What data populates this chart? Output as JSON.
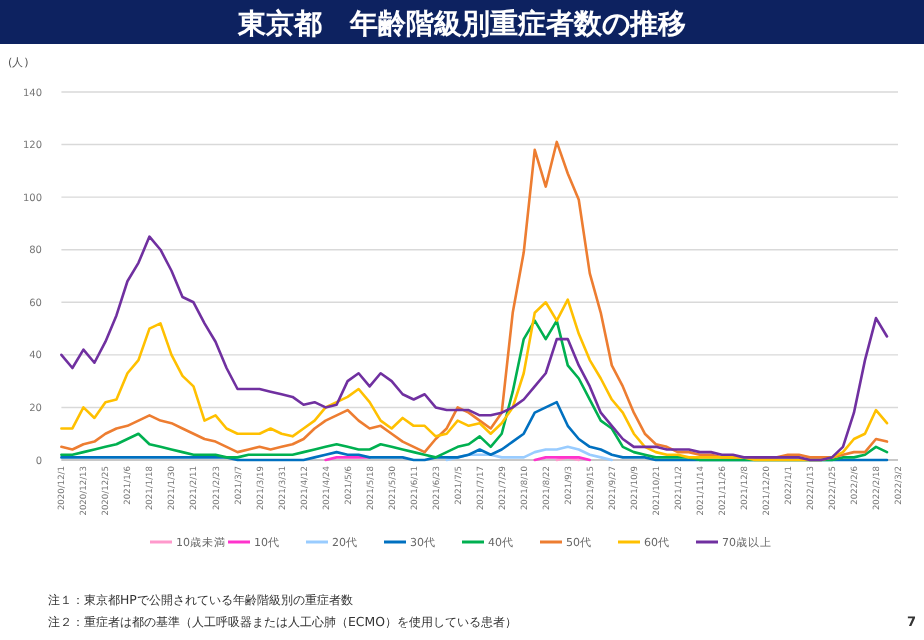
{
  "chart_data": {
    "type": "line",
    "title": "東京都　年齢階級別重症者数の推移",
    "ylabel": "(人)",
    "x": [
      "2020-12-01",
      "2020-12-07",
      "2020-12-13",
      "2020-12-19",
      "2020-12-25",
      "2020-12-31",
      "2021-01-06",
      "2021-01-12",
      "2021-01-18",
      "2021-01-24",
      "2021-01-30",
      "2021-02-05",
      "2021-02-11",
      "2021-02-17",
      "2021-02-23",
      "2021-03-01",
      "2021-03-07",
      "2021-03-13",
      "2021-03-19",
      "2021-03-25",
      "2021-03-31",
      "2021-04-06",
      "2021-04-12",
      "2021-04-18",
      "2021-04-24",
      "2021-04-30",
      "2021-05-06",
      "2021-05-12",
      "2021-05-18",
      "2021-05-24",
      "2021-05-30",
      "2021-06-05",
      "2021-06-11",
      "2021-06-17",
      "2021-06-23",
      "2021-06-29",
      "2021-07-05",
      "2021-07-11",
      "2021-07-17",
      "2021-07-23",
      "2021-07-29",
      "2021-08-04",
      "2021-08-10",
      "2021-08-16",
      "2021-08-22",
      "2021-08-28",
      "2021-09-03",
      "2021-09-09",
      "2021-09-15",
      "2021-09-21",
      "2021-09-27",
      "2021-10-03",
      "2021-10-09",
      "2021-10-15",
      "2021-10-21",
      "2021-10-27",
      "2021-11-02",
      "2021-11-08",
      "2021-11-14",
      "2021-11-20",
      "2021-11-26",
      "2021-12-02",
      "2021-12-08",
      "2021-12-14",
      "2021-12-20",
      "2021-12-26",
      "2022-01-01",
      "2022-01-07",
      "2022-01-13",
      "2022-01-19",
      "2022-01-25",
      "2022-01-31",
      "2022-02-06",
      "2022-02-12",
      "2022-02-18",
      "2022-02-24"
    ],
    "xlim": [
      "2020-12-01",
      "2022-03-02"
    ],
    "xticks": [
      {
        "value": "2020-12-01",
        "label": "2020/12/1"
      },
      {
        "value": "2020-12-13",
        "label": "2020/12/13"
      },
      {
        "value": "2020-12-25",
        "label": "2020/12/25"
      },
      {
        "value": "2021-01-06",
        "label": "2021/1/6"
      },
      {
        "value": "2021-01-18",
        "label": "2021/1/18"
      },
      {
        "value": "2021-01-30",
        "label": "2021/1/30"
      },
      {
        "value": "2021-02-11",
        "label": "2021/2/11"
      },
      {
        "value": "2021-02-23",
        "label": "2021/2/23"
      },
      {
        "value": "2021-03-07",
        "label": "2021/3/7"
      },
      {
        "value": "2021-03-19",
        "label": "2021/3/19"
      },
      {
        "value": "2021-03-31",
        "label": "2021/3/31"
      },
      {
        "value": "2021-04-12",
        "label": "2021/4/12"
      },
      {
        "value": "2021-04-24",
        "label": "2021/4/24"
      },
      {
        "value": "2021-05-06",
        "label": "2021/5/6"
      },
      {
        "value": "2021-05-18",
        "label": "2021/5/18"
      },
      {
        "value": "2021-05-30",
        "label": "2021/5/30"
      },
      {
        "value": "2021-06-11",
        "label": "2021/6/11"
      },
      {
        "value": "2021-06-23",
        "label": "2021/6/23"
      },
      {
        "value": "2021-07-05",
        "label": "2021/7/5"
      },
      {
        "value": "2021-07-17",
        "label": "2021/7/17"
      },
      {
        "value": "2021-07-29",
        "label": "2021/7/29"
      },
      {
        "value": "2021-08-10",
        "label": "2021/8/10"
      },
      {
        "value": "2021-08-22",
        "label": "2021/8/22"
      },
      {
        "value": "2021-09-03",
        "label": "2021/9/3"
      },
      {
        "value": "2021-09-15",
        "label": "2021/9/15"
      },
      {
        "value": "2021-09-27",
        "label": "2021/9/27"
      },
      {
        "value": "2021-10-09",
        "label": "2021/10/9"
      },
      {
        "value": "2021-10-21",
        "label": "2021/10/21"
      },
      {
        "value": "2021-11-02",
        "label": "2021/11/2"
      },
      {
        "value": "2021-11-14",
        "label": "2021/11/14"
      },
      {
        "value": "2021-11-26",
        "label": "2021/11/26"
      },
      {
        "value": "2021-12-08",
        "label": "2021/12/8"
      },
      {
        "value": "2021-12-20",
        "label": "2021/12/20"
      },
      {
        "value": "2022-01-01",
        "label": "2022/1/1"
      },
      {
        "value": "2022-01-13",
        "label": "2022/1/13"
      },
      {
        "value": "2022-01-25",
        "label": "2022/1/25"
      },
      {
        "value": "2022-02-06",
        "label": "2022/2/6"
      },
      {
        "value": "2022-02-18",
        "label": "2022/2/18"
      },
      {
        "value": "2022-03-02",
        "label": "2022/3/2"
      }
    ],
    "ylim": [
      0,
      140
    ],
    "yticks": [
      0,
      20,
      40,
      60,
      80,
      100,
      120,
      140
    ],
    "grid": "y",
    "legend": "bottom",
    "series": [
      {
        "name": "10歳未満",
        "color": "#ff99cc",
        "values": [
          null,
          null,
          null,
          null,
          null,
          null,
          null,
          null,
          null,
          null,
          null,
          null,
          null,
          null,
          null,
          null,
          null,
          null,
          null,
          null,
          null,
          null,
          null,
          null,
          null,
          null,
          null,
          null,
          null,
          null,
          null,
          null,
          null,
          null,
          null,
          null,
          null,
          null,
          null,
          null,
          null,
          null,
          null,
          null,
          null,
          0,
          1,
          0,
          null,
          null,
          null,
          null,
          null,
          null,
          null,
          null,
          null,
          null,
          null,
          null,
          null,
          null,
          null,
          null,
          null,
          null,
          null,
          null,
          null,
          null,
          null,
          null,
          null,
          null,
          null,
          null
        ]
      },
      {
        "name": "10代",
        "color": "#ff33cc",
        "values": [
          null,
          null,
          null,
          null,
          null,
          null,
          null,
          null,
          null,
          null,
          null,
          null,
          null,
          null,
          null,
          null,
          null,
          null,
          null,
          null,
          null,
          null,
          null,
          null,
          0,
          1,
          1,
          1,
          1,
          null,
          null,
          null,
          null,
          null,
          null,
          null,
          null,
          null,
          null,
          null,
          null,
          null,
          null,
          0,
          1,
          1,
          1,
          1,
          0,
          null,
          null,
          null,
          null,
          null,
          null,
          null,
          null,
          null,
          null,
          null,
          null,
          null,
          null,
          null,
          null,
          null,
          null,
          null,
          null,
          null,
          null,
          null,
          null,
          null,
          null,
          null
        ]
      },
      {
        "name": "20代",
        "color": "#99ccff",
        "values": [
          null,
          null,
          null,
          null,
          null,
          null,
          null,
          null,
          null,
          null,
          null,
          null,
          null,
          null,
          null,
          null,
          null,
          null,
          null,
          null,
          null,
          null,
          null,
          null,
          null,
          null,
          null,
          null,
          null,
          null,
          null,
          null,
          null,
          null,
          null,
          0,
          1,
          2,
          2,
          2,
          1,
          1,
          1,
          3,
          4,
          4,
          5,
          4,
          2,
          1,
          0,
          null,
          null,
          null,
          null,
          null,
          null,
          null,
          null,
          null,
          null,
          null,
          null,
          null,
          null,
          null,
          null,
          null,
          null,
          null,
          null,
          null,
          null,
          null,
          null,
          null
        ]
      },
      {
        "name": "30代",
        "color": "#0070c0",
        "values": [
          1,
          1,
          1,
          1,
          1,
          1,
          1,
          1,
          1,
          1,
          1,
          1,
          1,
          1,
          1,
          1,
          0,
          0,
          0,
          0,
          0,
          0,
          0,
          1,
          2,
          3,
          2,
          2,
          1,
          1,
          1,
          1,
          0,
          0,
          1,
          1,
          1,
          2,
          4,
          2,
          4,
          7,
          10,
          18,
          20,
          22,
          13,
          8,
          5,
          4,
          2,
          1,
          1,
          1,
          0,
          0,
          0,
          0,
          0,
          0,
          0,
          0,
          0,
          0,
          0,
          0,
          0,
          0,
          0,
          0,
          0,
          0,
          0,
          0,
          0,
          0
        ]
      },
      {
        "name": "40代",
        "color": "#00b050",
        "values": [
          2,
          2,
          3,
          4,
          5,
          6,
          8,
          10,
          6,
          5,
          4,
          3,
          2,
          2,
          2,
          1,
          1,
          2,
          2,
          2,
          2,
          2,
          3,
          4,
          5,
          6,
          5,
          4,
          4,
          6,
          5,
          4,
          3,
          2,
          1,
          3,
          5,
          6,
          9,
          5,
          10,
          26,
          46,
          53,
          46,
          53,
          36,
          31,
          23,
          15,
          12,
          5,
          3,
          2,
          1,
          1,
          1,
          1,
          0,
          0,
          0,
          0,
          0,
          0,
          0,
          0,
          0,
          0,
          0,
          0,
          0,
          1,
          1,
          2,
          5,
          3
        ]
      },
      {
        "name": "50代",
        "color": "#ed7d31",
        "values": [
          5,
          4,
          6,
          7,
          10,
          12,
          13,
          15,
          17,
          15,
          14,
          12,
          10,
          8,
          7,
          5,
          3,
          4,
          5,
          4,
          5,
          6,
          8,
          12,
          15,
          17,
          19,
          15,
          12,
          13,
          10,
          7,
          5,
          3,
          8,
          12,
          20,
          18,
          15,
          12,
          18,
          56,
          79,
          118,
          104,
          121,
          109,
          99,
          71,
          56,
          36,
          28,
          18,
          10,
          6,
          5,
          3,
          3,
          2,
          2,
          1,
          1,
          1,
          1,
          1,
          1,
          2,
          2,
          1,
          1,
          1,
          2,
          3,
          3,
          8,
          7
        ]
      },
      {
        "name": "60代",
        "color": "#ffc000",
        "values": [
          12,
          12,
          20,
          16,
          22,
          23,
          33,
          38,
          50,
          52,
          40,
          32,
          28,
          15,
          17,
          12,
          10,
          10,
          10,
          12,
          10,
          9,
          12,
          15,
          20,
          22,
          24,
          27,
          22,
          15,
          12,
          16,
          13,
          13,
          9,
          10,
          15,
          13,
          14,
          10,
          14,
          20,
          33,
          56,
          60,
          53,
          61,
          48,
          38,
          31,
          23,
          18,
          10,
          5,
          3,
          2,
          2,
          1,
          1,
          1,
          1,
          1,
          1,
          0,
          0,
          0,
          0,
          0,
          0,
          0,
          1,
          3,
          8,
          10,
          19,
          14
        ]
      },
      {
        "name": "70歳以上",
        "color": "#7030a0",
        "values": [
          40,
          35,
          42,
          37,
          45,
          55,
          68,
          75,
          85,
          80,
          72,
          62,
          60,
          52,
          45,
          35,
          27,
          27,
          27,
          26,
          25,
          24,
          21,
          22,
          20,
          21,
          30,
          33,
          28,
          33,
          30,
          25,
          23,
          25,
          20,
          19,
          19,
          19,
          17,
          17,
          18,
          20,
          23,
          28,
          33,
          46,
          46,
          36,
          28,
          18,
          13,
          8,
          5,
          5,
          5,
          4,
          4,
          4,
          3,
          3,
          2,
          2,
          1,
          1,
          1,
          1,
          1,
          1,
          0,
          0,
          1,
          5,
          18,
          38,
          54,
          47
        ]
      }
    ],
    "annotations": [
      "注１：東京都HPで公開されている年齢階級別の重症者数",
      "注２：重症者は都の基準（人工呼吸器または人工心肺（ECMO）を使用している患者）",
      "7"
    ]
  }
}
